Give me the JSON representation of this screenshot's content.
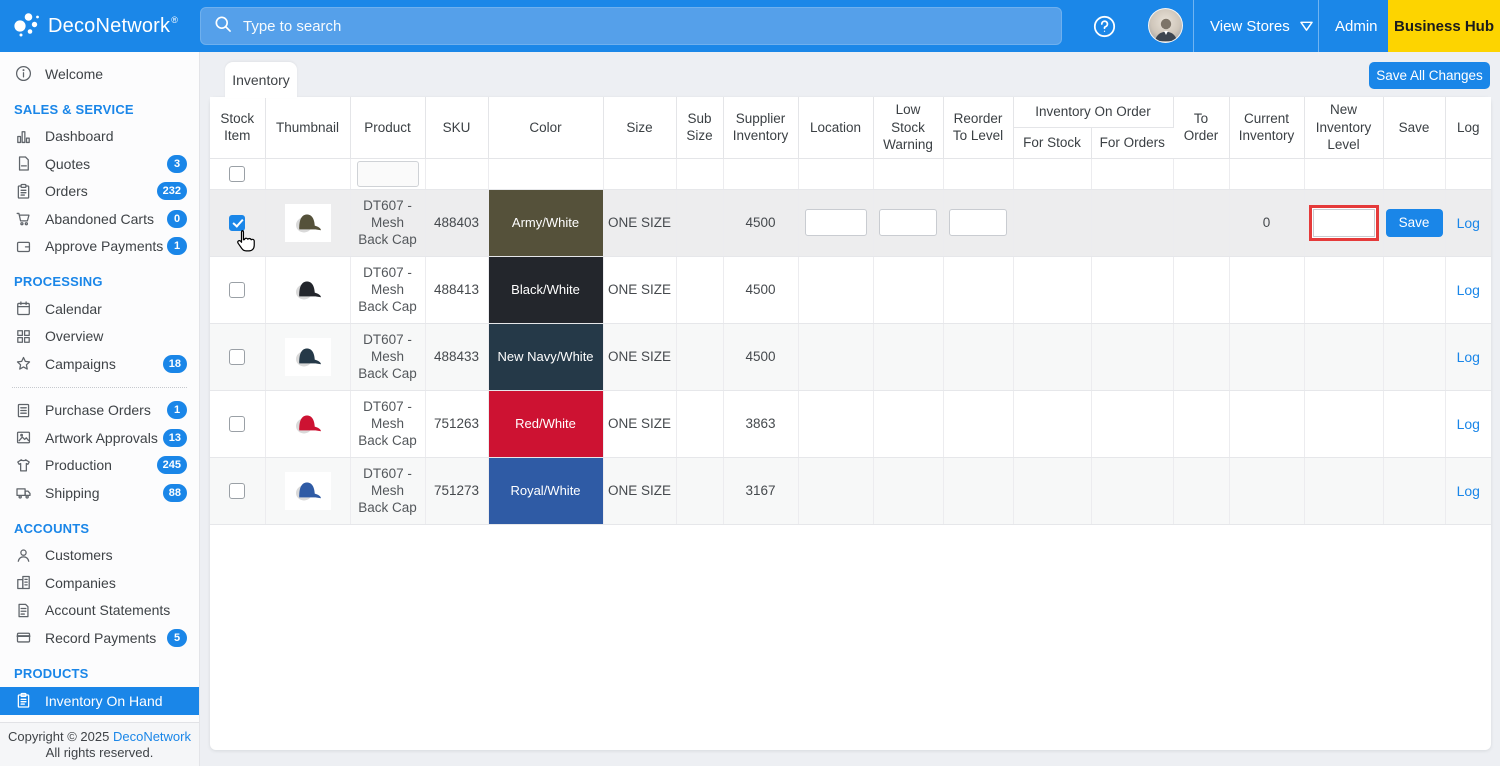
{
  "topbar": {
    "brand": "DecoNetwork",
    "brand_mark": "®",
    "search_placeholder": "Type to search",
    "view_stores_label": "View Stores",
    "admin_label": "Admin",
    "business_hub_label": "Business Hub",
    "icons": [
      "deconetwork-logo-icon",
      "search-icon",
      "help-icon",
      "avatar",
      "chevron-down-icon"
    ]
  },
  "sidebar": {
    "sections": [
      {
        "header": null,
        "items": [
          {
            "icon": "info-icon",
            "label": "Welcome"
          }
        ]
      },
      {
        "header": "SALES & SERVICE",
        "items": [
          {
            "icon": "dashboard-icon",
            "label": "Dashboard"
          },
          {
            "icon": "quotes-icon",
            "label": "Quotes",
            "badge": "3"
          },
          {
            "icon": "orders-icon",
            "label": "Orders",
            "badge": "232"
          },
          {
            "icon": "cart-icon",
            "label": "Abandoned Carts",
            "badge": "0"
          },
          {
            "icon": "wallet-icon",
            "label": "Approve Payments",
            "badge": "1"
          }
        ]
      },
      {
        "header": "PROCESSING",
        "items": [
          {
            "icon": "calendar-icon",
            "label": "Calendar"
          },
          {
            "icon": "overview-grid-icon",
            "label": "Overview"
          },
          {
            "icon": "star-icon",
            "label": "Campaigns",
            "badge": "18"
          },
          {
            "divider": true
          },
          {
            "icon": "purchase-orders-icon",
            "label": "Purchase Orders",
            "badge": "1"
          },
          {
            "icon": "artwork-icon",
            "label": "Artwork Approvals",
            "badge": "13"
          },
          {
            "icon": "production-shirt-icon",
            "label": "Production",
            "badge": "245"
          },
          {
            "icon": "shipping-truck-icon",
            "label": "Shipping",
            "badge": "88"
          }
        ]
      },
      {
        "header": "ACCOUNTS",
        "items": [
          {
            "icon": "customers-icon",
            "label": "Customers"
          },
          {
            "icon": "companies-icon",
            "label": "Companies"
          },
          {
            "icon": "statements-icon",
            "label": "Account Statements"
          },
          {
            "icon": "payments-card-icon",
            "label": "Record Payments",
            "badge": "5"
          }
        ]
      },
      {
        "header": "PRODUCTS",
        "items": [
          {
            "icon": "inventory-clipboard-icon",
            "label": "Inventory On Hand",
            "active": true
          }
        ]
      }
    ],
    "footer": {
      "line1_prefix": "Copyright © 2025 ",
      "link": "DecoNetwork",
      "line2": "All rights reserved."
    }
  },
  "main": {
    "tab_label": "Inventory",
    "save_all_label": "Save All Changes",
    "table": {
      "headers_main": [
        "Stock Item",
        "Thumbnail",
        "Product",
        "SKU",
        "Color",
        "Size",
        "Sub Size",
        "Supplier Inventory",
        "Location",
        "Low Stock Warning",
        "Reorder To Level"
      ],
      "group_header": {
        "label": "Inventory On Order",
        "children": [
          "For Stock",
          "For Orders"
        ]
      },
      "headers_tail": [
        "To Order",
        "Current Inventory",
        "New Inventory Level",
        "Save",
        "Log"
      ],
      "filter": {
        "product_filter_value": ""
      },
      "rows": [
        {
          "selected": true,
          "editable": true,
          "new_level_highlighted": true,
          "product": "DT607 - Mesh Back Cap",
          "sku": "488403",
          "color_name": "Army/White",
          "color_hex": "#55513a",
          "size": "ONE SIZE",
          "sub_size": "",
          "supplier_inventory": "4500",
          "location": "",
          "low_stock_warning": "",
          "reorder_to_level": "",
          "for_stock": "",
          "for_orders": "",
          "to_order": "",
          "current_inventory": "0",
          "new_inventory_level": "",
          "save_label": "Save",
          "log_label": "Log"
        },
        {
          "product": "DT607 - Mesh Back Cap",
          "sku": "488413",
          "color_name": "Black/White",
          "color_hex": "#23262c",
          "size": "ONE SIZE",
          "sub_size": "",
          "supplier_inventory": "4500",
          "log_label": "Log"
        },
        {
          "product": "DT607 - Mesh Back Cap",
          "sku": "488433",
          "color_name": "New Navy/White",
          "color_hex": "#253948",
          "size": "ONE SIZE",
          "sub_size": "",
          "supplier_inventory": "4500",
          "log_label": "Log"
        },
        {
          "product": "DT607 - Mesh Back Cap",
          "sku": "751263",
          "color_name": "Red/White",
          "color_hex": "#cd1232",
          "size": "ONE SIZE",
          "sub_size": "",
          "supplier_inventory": "3863",
          "log_label": "Log"
        },
        {
          "product": "DT607 - Mesh Back Cap",
          "sku": "751273",
          "color_name": "Royal/White",
          "color_hex": "#2f5ba5",
          "size": "ONE SIZE",
          "sub_size": "",
          "supplier_inventory": "3167",
          "log_label": "Log"
        }
      ]
    }
  },
  "colors": {
    "accent_blue": "#1a86e8",
    "topbar_blue": "#1b87e8",
    "search_field_blue": "#55a0ea",
    "business_hub_yellow": "#fdd400",
    "highlight_red": "#e53a3a"
  }
}
